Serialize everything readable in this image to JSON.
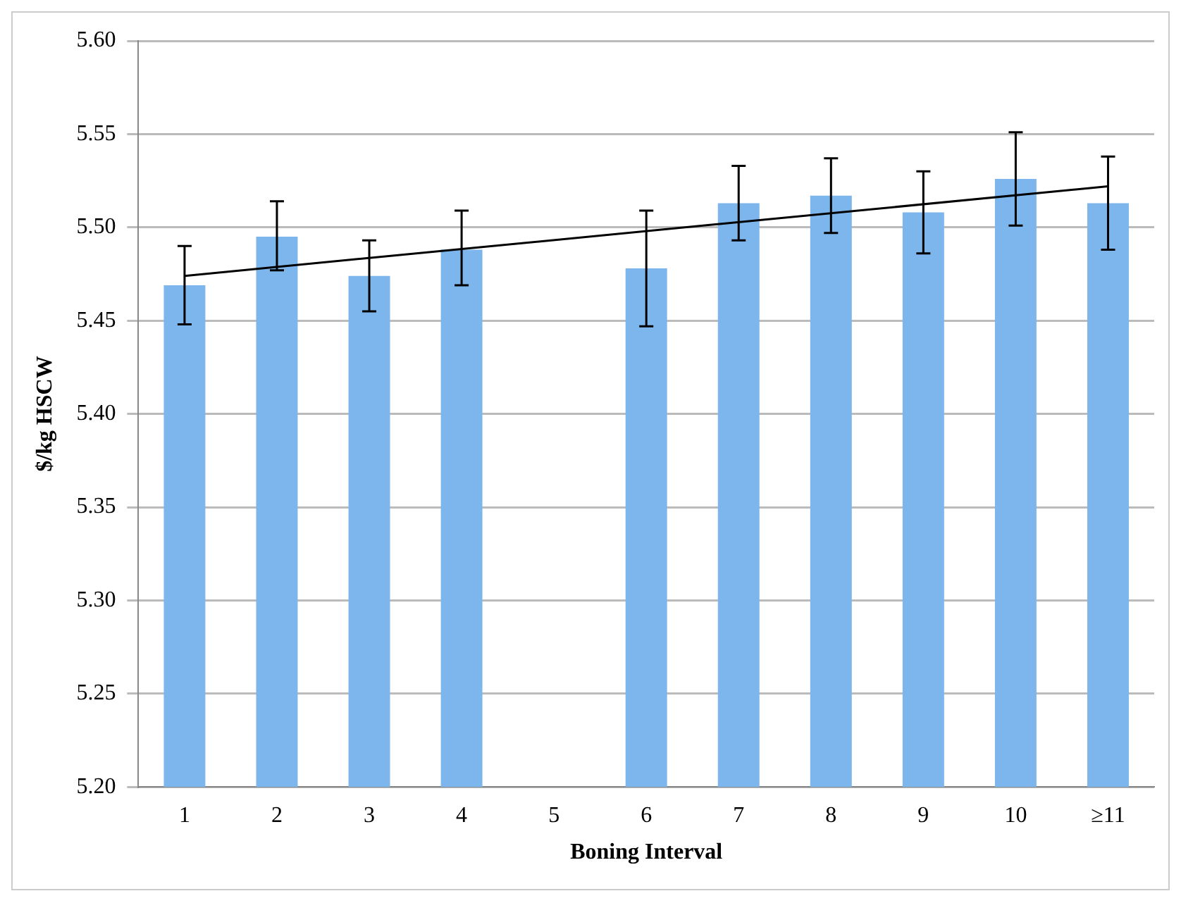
{
  "chart_data": {
    "type": "bar",
    "xlabel": "Boning Interval",
    "ylabel": "$/kg HSCW",
    "categories": [
      "1",
      "2",
      "3",
      "4",
      "5",
      "6",
      "7",
      "8",
      "9",
      "10",
      "≥11"
    ],
    "series": [
      {
        "color": "#7db6ec",
        "values": [
          5.469,
          5.495,
          5.474,
          5.488,
          null,
          5.478,
          5.513,
          5.517,
          5.508,
          5.526,
          5.513
        ],
        "errors": [
          [
            5.448,
            5.49
          ],
          [
            5.477,
            5.514
          ],
          [
            5.455,
            5.493
          ],
          [
            5.469,
            5.509
          ],
          null,
          [
            5.447,
            5.509
          ],
          [
            5.493,
            5.533
          ],
          [
            5.497,
            5.537
          ],
          [
            5.486,
            5.53
          ],
          [
            5.501,
            5.551
          ],
          [
            5.488,
            5.538
          ]
        ]
      },
      {
        "type": "line",
        "color": "#000000",
        "x": [
          "1",
          "≥11"
        ],
        "values": [
          5.474,
          5.522
        ]
      }
    ],
    "ylim": [
      5.2,
      5.6
    ],
    "yticks": [
      {
        "value": 5.2,
        "label": "5.20"
      },
      {
        "value": 5.25,
        "label": "5.25"
      },
      {
        "value": 5.3,
        "label": "5.30"
      },
      {
        "value": 5.35,
        "label": "5.35"
      },
      {
        "value": 5.4,
        "label": "5.40"
      },
      {
        "value": 5.45,
        "label": "5.45"
      },
      {
        "value": 5.5,
        "label": "5.50"
      },
      {
        "value": 5.55,
        "label": "5.55"
      },
      {
        "value": 5.6,
        "label": "5.60"
      }
    ],
    "grid": "y",
    "legend": false,
    "marker": "none"
  }
}
